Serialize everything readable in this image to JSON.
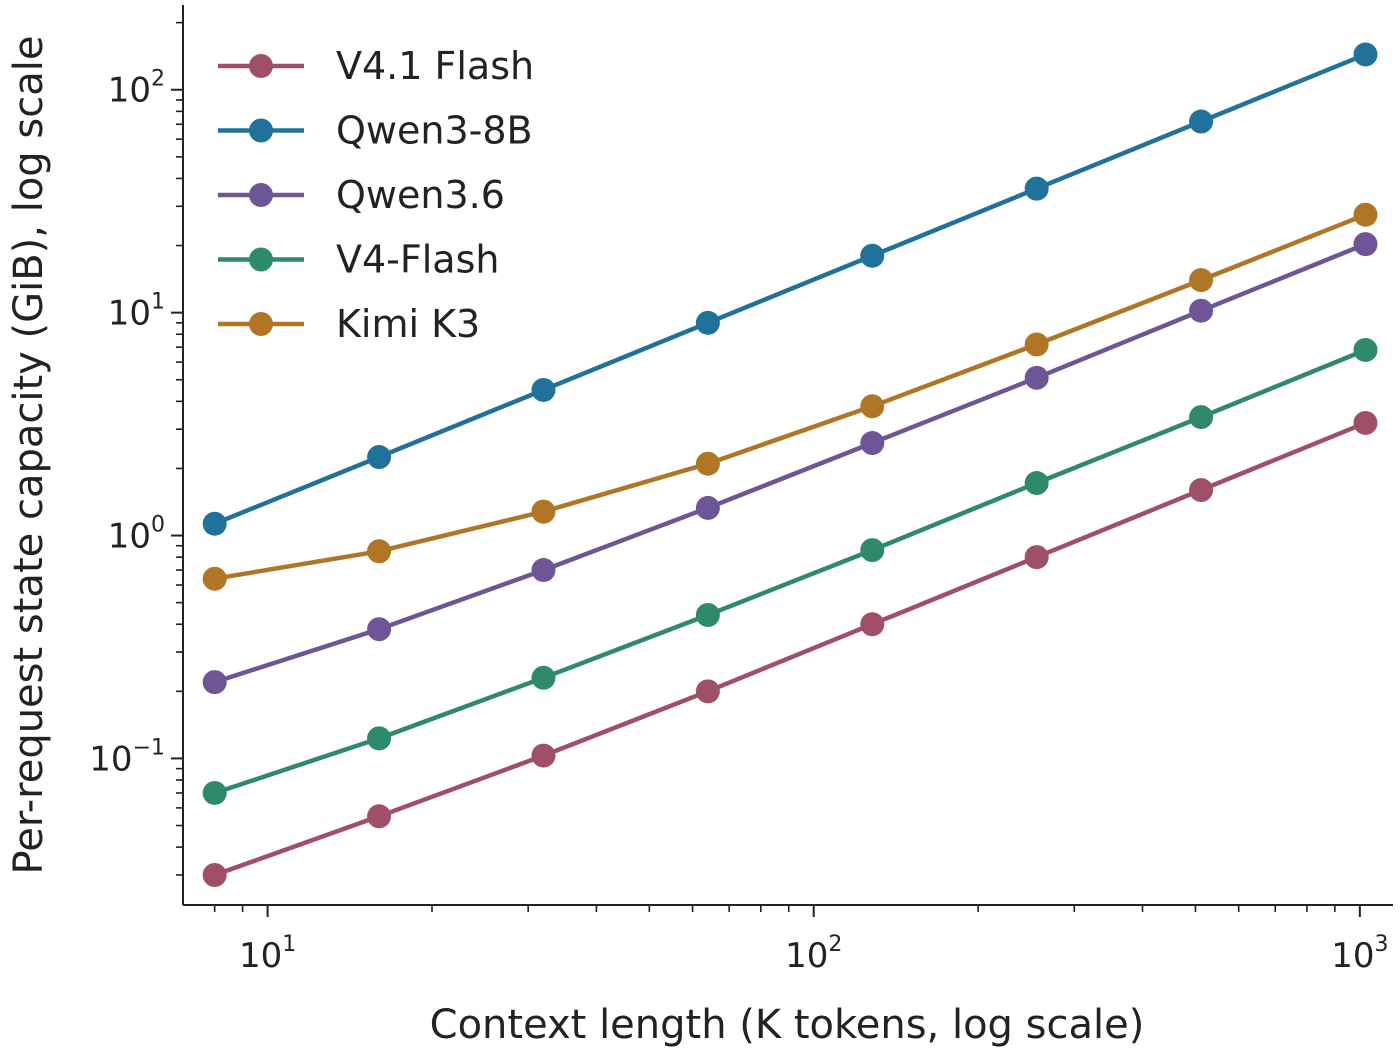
{
  "chart_data": {
    "type": "line",
    "title": "",
    "xlabel": "Context length (K tokens, log scale)",
    "ylabel": "Per-request state capacity (GiB), log scale",
    "x_scale": "log",
    "y_scale": "log",
    "xlim": [
      7,
      1150
    ],
    "ylim": [
      0.022,
      240
    ],
    "grid": false,
    "legend_position": "top-left",
    "x": [
      8,
      16,
      32,
      64,
      128,
      256,
      512,
      1024
    ],
    "x_ticks": [
      {
        "value": 10,
        "base": "10",
        "exp": "1"
      },
      {
        "value": 100,
        "base": "10",
        "exp": "2"
      },
      {
        "value": 1000,
        "base": "10",
        "exp": "3"
      }
    ],
    "y_ticks": [
      {
        "value": 0.1,
        "base": "10",
        "exp": "−1"
      },
      {
        "value": 1,
        "base": "10",
        "exp": "0"
      },
      {
        "value": 10,
        "base": "10",
        "exp": "1"
      },
      {
        "value": 100,
        "base": "10",
        "exp": "2"
      }
    ],
    "series": [
      {
        "name": "V4.1 Flash",
        "color": "#a05064",
        "values": [
          0.03,
          0.055,
          0.103,
          0.2,
          0.4,
          0.8,
          1.6,
          3.2
        ]
      },
      {
        "name": "Qwen3-8B",
        "color": "#20729a",
        "values": [
          1.13,
          2.25,
          4.5,
          9.0,
          18.0,
          36.0,
          72.0,
          144.0
        ]
      },
      {
        "name": "Qwen3.6",
        "color": "#6e5596",
        "values": [
          0.22,
          0.38,
          0.7,
          1.33,
          2.6,
          5.1,
          10.2,
          20.3
        ]
      },
      {
        "name": "V4-Flash",
        "color": "#2e8a69",
        "values": [
          0.07,
          0.123,
          0.23,
          0.44,
          0.86,
          1.72,
          3.4,
          6.8
        ]
      },
      {
        "name": "Kimi K3",
        "color": "#b07525",
        "values": [
          0.64,
          0.85,
          1.28,
          2.1,
          3.8,
          7.2,
          14.0,
          27.5
        ]
      }
    ]
  }
}
